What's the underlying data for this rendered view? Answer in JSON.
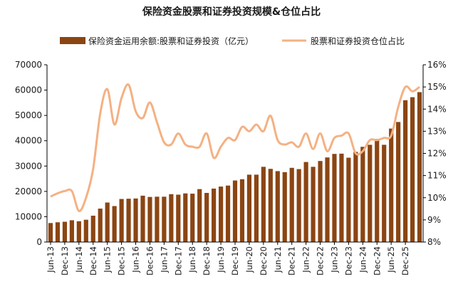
{
  "chart_data": {
    "type": "bar+line",
    "title": "保险资金股票和证券投资规模&仓位占比",
    "legend_position": "top",
    "grid": false,
    "colors": {
      "bar": "#8B4513",
      "line": "#F4B183"
    },
    "series": [
      {
        "name": "保险资金运用余额:股票和证券投资（亿元）",
        "type": "bar",
        "axis": "left",
        "values": [
          7500,
          7800,
          8000,
          8600,
          8200,
          8800,
          10400,
          13200,
          15600,
          14200,
          17000,
          17100,
          17200,
          18300,
          17800,
          17900,
          17900,
          18900,
          18700,
          19200,
          19100,
          20900,
          19400,
          21100,
          21900,
          22300,
          24300,
          24800,
          26600,
          26600,
          29700,
          28900,
          28000,
          27600,
          29300,
          28800,
          31600,
          29700,
          32000,
          33400,
          34800,
          34900,
          33300,
          35600,
          37600,
          38400,
          40700,
          38400,
          44800,
          47400,
          56000,
          57200,
          59200
        ]
      },
      {
        "name": "股票和证券投资仓位占比",
        "type": "line",
        "axis": "right",
        "values": [
          10.05,
          10.2,
          10.3,
          10.3,
          9.4,
          10.0,
          11.3,
          13.8,
          14.9,
          13.3,
          14.5,
          15.1,
          13.9,
          13.6,
          14.3,
          13.4,
          12.5,
          12.4,
          12.9,
          12.4,
          12.3,
          12.3,
          12.9,
          11.8,
          12.3,
          12.7,
          12.6,
          13.2,
          13.0,
          13.3,
          13.0,
          13.7,
          12.6,
          12.4,
          12.5,
          12.3,
          12.9,
          12.2,
          12.9,
          12.1,
          12.7,
          12.8,
          12.9,
          12.0,
          12.1,
          12.6,
          12.6,
          12.7,
          12.8,
          14.1,
          15.0,
          14.8,
          15.0
        ]
      }
    ],
    "xticklabels": [
      "Jun-13",
      "Dec-13",
      "Jun-14",
      "Dec-14",
      "Jun-15",
      "Dec-15",
      "Jun-16",
      "Dec-16",
      "Jun-17",
      "Dec-17",
      "Jun-18",
      "Dec-18",
      "Jun-19",
      "Dec-19",
      "Jun-20",
      "Dec-20",
      "Jun-21",
      "Dec-21",
      "Jun-22",
      "Dec-22",
      "Jun-23",
      "Dec-23",
      "Jun-24",
      "Dec-24",
      "Jun-25",
      "Dec-25"
    ],
    "yleft": {
      "min": 0,
      "max": 70000,
      "ticks": [
        "0",
        "10000",
        "20000",
        "30000",
        "40000",
        "50000",
        "60000",
        "70000"
      ]
    },
    "yright": {
      "min": 8,
      "max": 16,
      "ticks": [
        "8%",
        "9%",
        "10%",
        "11%",
        "12%",
        "13%",
        "14%",
        "15%",
        "16%"
      ]
    }
  }
}
